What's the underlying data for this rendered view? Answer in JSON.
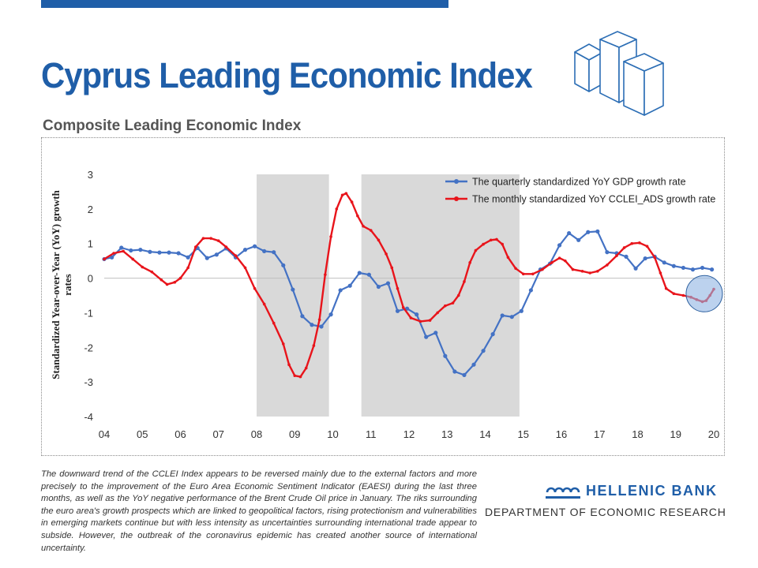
{
  "slide": {
    "title": "Cyprus Leading Economic Index",
    "subtitle": "Composite Leading Economic Index",
    "description": "The downward trend of the CCLEI Index appears to be reversed mainly due to the external factors and more precisely to the improvement of the Euro Area Economic Sentiment Indicator (EAESI) during the last three months, as well as the YoY negative performance of the Brent Crude Oil price in January. The riks surrounding the euro area's growth prospects which are linked to geopolitical factors, rising protectionism and vulnerabilities in emerging markets continue but with less intensity as uncertainties surrounding international trade appear to subside. However, the outbreak of the coronavirus epidemic has created another source of international uncertainty.",
    "bank_name": "HELLENIC BANK",
    "department": "DEPARTMENT OF ECONOMIC RESEARCH"
  },
  "colors": {
    "brand": "#1f5ea8",
    "gdp_series": "#4472c4",
    "cclei_series": "#e8141b",
    "shading": "#d9d9d9",
    "highlight": "#8fb4e3"
  },
  "chart_data": {
    "type": "line",
    "ylabel": "Standardized Year-over-Year (YoY) growth rates",
    "xlabel": "",
    "ylim": [
      -4,
      3
    ],
    "xlim": [
      2004,
      2020
    ],
    "yticks": [
      3,
      2,
      1,
      0,
      -1,
      -2,
      -3,
      -4
    ],
    "ytick_labels": [
      "3",
      "2",
      "1",
      "0",
      "-1",
      "-2",
      "-3",
      "-4"
    ],
    "xticks": [
      2004,
      2005,
      2006,
      2007,
      2008,
      2009,
      2010,
      2011,
      2012,
      2013,
      2014,
      2015,
      2016,
      2017,
      2018,
      2019,
      2020
    ],
    "xtick_labels": [
      "04",
      "05",
      "06",
      "07",
      "08",
      "09",
      "10",
      "11",
      "12",
      "13",
      "14",
      "15",
      "16",
      "17",
      "18",
      "19",
      "20"
    ],
    "legend_position": "top-right",
    "shaded_regions": [
      [
        2008.0,
        2009.9
      ],
      [
        2010.75,
        2014.9
      ]
    ],
    "highlight": {
      "x": 2019.75,
      "y": -0.45
    },
    "series": [
      {
        "name": "The quarterly standardized YoY GDP growth rate",
        "color": "#4472c4",
        "marker_every": 1,
        "points": [
          [
            2004.0,
            0.55
          ],
          [
            2004.2,
            0.6
          ],
          [
            2004.45,
            0.88
          ],
          [
            2004.7,
            0.8
          ],
          [
            2004.95,
            0.82
          ],
          [
            2005.2,
            0.76
          ],
          [
            2005.45,
            0.74
          ],
          [
            2005.7,
            0.74
          ],
          [
            2005.95,
            0.72
          ],
          [
            2006.2,
            0.6
          ],
          [
            2006.45,
            0.87
          ],
          [
            2006.7,
            0.58
          ],
          [
            2006.95,
            0.68
          ],
          [
            2007.2,
            0.86
          ],
          [
            2007.45,
            0.6
          ],
          [
            2007.7,
            0.82
          ],
          [
            2007.95,
            0.92
          ],
          [
            2008.2,
            0.78
          ],
          [
            2008.45,
            0.75
          ],
          [
            2008.7,
            0.37
          ],
          [
            2008.95,
            -0.33
          ],
          [
            2009.2,
            -1.1
          ],
          [
            2009.45,
            -1.35
          ],
          [
            2009.7,
            -1.4
          ],
          [
            2009.95,
            -1.05
          ],
          [
            2010.2,
            -0.35
          ],
          [
            2010.45,
            -0.22
          ],
          [
            2010.7,
            0.15
          ],
          [
            2010.95,
            0.1
          ],
          [
            2011.2,
            -0.25
          ],
          [
            2011.45,
            -0.15
          ],
          [
            2011.7,
            -0.95
          ],
          [
            2011.95,
            -0.88
          ],
          [
            2012.2,
            -1.05
          ],
          [
            2012.45,
            -1.7
          ],
          [
            2012.7,
            -1.58
          ],
          [
            2012.95,
            -2.25
          ],
          [
            2013.2,
            -2.7
          ],
          [
            2013.45,
            -2.8
          ],
          [
            2013.7,
            -2.5
          ],
          [
            2013.95,
            -2.1
          ],
          [
            2014.2,
            -1.62
          ],
          [
            2014.45,
            -1.08
          ],
          [
            2014.7,
            -1.12
          ],
          [
            2014.95,
            -0.95
          ],
          [
            2015.2,
            -0.35
          ],
          [
            2015.45,
            0.25
          ],
          [
            2015.7,
            0.42
          ],
          [
            2015.95,
            0.95
          ],
          [
            2016.2,
            1.3
          ],
          [
            2016.45,
            1.1
          ],
          [
            2016.7,
            1.33
          ],
          [
            2016.95,
            1.35
          ],
          [
            2017.2,
            0.75
          ],
          [
            2017.45,
            0.72
          ],
          [
            2017.7,
            0.62
          ],
          [
            2017.95,
            0.28
          ],
          [
            2018.2,
            0.57
          ],
          [
            2018.45,
            0.62
          ],
          [
            2018.7,
            0.45
          ],
          [
            2018.95,
            0.35
          ],
          [
            2019.2,
            0.3
          ],
          [
            2019.45,
            0.25
          ],
          [
            2019.7,
            0.3
          ],
          [
            2019.95,
            0.25
          ]
        ]
      },
      {
        "name": "The monthly standardized YoY CCLEI_ADS growth rate",
        "color": "#e8141b",
        "marker_every": 1,
        "points": [
          [
            2004.0,
            0.55
          ],
          [
            2004.25,
            0.72
          ],
          [
            2004.5,
            0.78
          ],
          [
            2004.75,
            0.55
          ],
          [
            2005.0,
            0.32
          ],
          [
            2005.25,
            0.18
          ],
          [
            2005.5,
            -0.05
          ],
          [
            2005.65,
            -0.18
          ],
          [
            2005.85,
            -0.12
          ],
          [
            2006.0,
            0.0
          ],
          [
            2006.2,
            0.3
          ],
          [
            2006.4,
            0.9
          ],
          [
            2006.6,
            1.15
          ],
          [
            2006.8,
            1.15
          ],
          [
            2007.0,
            1.08
          ],
          [
            2007.2,
            0.9
          ],
          [
            2007.45,
            0.65
          ],
          [
            2007.7,
            0.3
          ],
          [
            2007.95,
            -0.3
          ],
          [
            2008.2,
            -0.75
          ],
          [
            2008.45,
            -1.3
          ],
          [
            2008.7,
            -1.9
          ],
          [
            2008.85,
            -2.5
          ],
          [
            2009.0,
            -2.82
          ],
          [
            2009.15,
            -2.85
          ],
          [
            2009.3,
            -2.6
          ],
          [
            2009.5,
            -1.95
          ],
          [
            2009.65,
            -1.2
          ],
          [
            2009.8,
            0.1
          ],
          [
            2009.95,
            1.2
          ],
          [
            2010.1,
            2.0
          ],
          [
            2010.25,
            2.4
          ],
          [
            2010.35,
            2.45
          ],
          [
            2010.5,
            2.2
          ],
          [
            2010.65,
            1.8
          ],
          [
            2010.8,
            1.5
          ],
          [
            2011.0,
            1.38
          ],
          [
            2011.2,
            1.1
          ],
          [
            2011.4,
            0.7
          ],
          [
            2011.55,
            0.3
          ],
          [
            2011.7,
            -0.3
          ],
          [
            2011.85,
            -0.85
          ],
          [
            2012.05,
            -1.15
          ],
          [
            2012.3,
            -1.25
          ],
          [
            2012.55,
            -1.22
          ],
          [
            2012.75,
            -1.0
          ],
          [
            2012.95,
            -0.8
          ],
          [
            2013.15,
            -0.72
          ],
          [
            2013.3,
            -0.5
          ],
          [
            2013.45,
            -0.1
          ],
          [
            2013.6,
            0.45
          ],
          [
            2013.75,
            0.8
          ],
          [
            2013.95,
            0.98
          ],
          [
            2014.15,
            1.1
          ],
          [
            2014.3,
            1.12
          ],
          [
            2014.45,
            0.98
          ],
          [
            2014.6,
            0.6
          ],
          [
            2014.8,
            0.28
          ],
          [
            2015.0,
            0.12
          ],
          [
            2015.25,
            0.12
          ],
          [
            2015.5,
            0.25
          ],
          [
            2015.75,
            0.45
          ],
          [
            2015.95,
            0.58
          ],
          [
            2016.1,
            0.5
          ],
          [
            2016.3,
            0.25
          ],
          [
            2016.55,
            0.2
          ],
          [
            2016.75,
            0.15
          ],
          [
            2016.95,
            0.2
          ],
          [
            2017.2,
            0.38
          ],
          [
            2017.45,
            0.65
          ],
          [
            2017.65,
            0.88
          ],
          [
            2017.85,
            1.0
          ],
          [
            2018.05,
            1.02
          ],
          [
            2018.25,
            0.92
          ],
          [
            2018.45,
            0.6
          ],
          [
            2018.6,
            0.15
          ],
          [
            2018.75,
            -0.3
          ],
          [
            2018.95,
            -0.45
          ],
          [
            2019.2,
            -0.5
          ],
          [
            2019.4,
            -0.55
          ],
          [
            2019.55,
            -0.62
          ],
          [
            2019.7,
            -0.68
          ],
          [
            2019.8,
            -0.65
          ],
          [
            2019.9,
            -0.5
          ],
          [
            2020.0,
            -0.32
          ]
        ]
      }
    ]
  }
}
